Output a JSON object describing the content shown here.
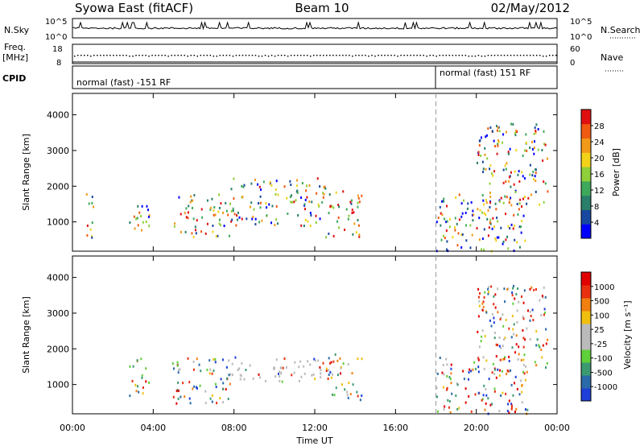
{
  "header": {
    "station": "Syowa East (fitACF)",
    "beam": "Beam 10",
    "date": "02/May/2012"
  },
  "strips": {
    "nsky_label": "N.Sky",
    "nsky_ticks": [
      "10^5",
      "10^0"
    ],
    "nsearch_label": "N.Search",
    "nsearch_ticks": [
      "10^5",
      "10^0"
    ],
    "freq_label": "Freq.",
    "freq_unit": "[MHz]",
    "freq_ticks": [
      "18",
      "8"
    ],
    "nave_label": "Nave",
    "nave_ticks": [
      "60",
      "0"
    ],
    "cpid_label": "CPID",
    "cpid_segments": [
      "normal (fast) -151 RF",
      "normal (fast) 151 RF"
    ]
  },
  "chart_data": [
    {
      "type": "heatmap",
      "title": "",
      "ylabel": "Slant Range [km]",
      "xlabel": "",
      "ylim": [
        180,
        4600
      ],
      "xlim_hours": [
        0,
        24
      ],
      "y_ticks": [
        "4000",
        "3000",
        "2000",
        "1000"
      ],
      "colorbar_label": "Power [dB]",
      "colorbar_ticks": [
        "28",
        "24",
        "20",
        "16",
        "12",
        "8",
        "4"
      ],
      "colorbar_colors": [
        "#0000ff",
        "#1848a0",
        "#2a7f6a",
        "#3fa85a",
        "#8ecf3a",
        "#f2d31a",
        "#f29a1a",
        "#f05a10",
        "#e01010"
      ],
      "regions": [
        {
          "t": [
            0.6,
            1.0
          ],
          "r": [
            300,
            2000
          ]
        },
        {
          "t": [
            2.8,
            3.8
          ],
          "r": [
            700,
            1800
          ]
        },
        {
          "t": [
            5.0,
            7.8
          ],
          "r": [
            600,
            1800
          ]
        },
        {
          "t": [
            7.8,
            12.5
          ],
          "r": [
            900,
            2300
          ]
        },
        {
          "t": [
            12.5,
            14.3
          ],
          "r": [
            600,
            1900
          ]
        },
        {
          "t": [
            18.0,
            22.5
          ],
          "r": [
            200,
            1800
          ]
        },
        {
          "t": [
            20.0,
            23.5
          ],
          "r": [
            1500,
            3800
          ]
        }
      ],
      "scale_marker_hours": 18.0
    },
    {
      "type": "heatmap",
      "title": "",
      "ylabel": "Slant Range [km]",
      "xlabel": "Time UT",
      "ylim": [
        180,
        4600
      ],
      "xlim_hours": [
        0,
        24
      ],
      "x_ticks": [
        "00:00",
        "04:00",
        "08:00",
        "12:00",
        "16:00",
        "20:00",
        "00:00"
      ],
      "y_ticks": [
        "4000",
        "3000",
        "2000",
        "1000"
      ],
      "colorbar_label": "Velocity [m s⁻¹]",
      "colorbar_ticks": [
        "1000",
        "500",
        "100",
        "25",
        "-25",
        "-100",
        "-500",
        "-1000"
      ],
      "colorbar_colors": [
        "#1e3fd8",
        "#2a6aa8",
        "#3c9a70",
        "#5fcf3a",
        "#bbbbbb",
        "#bbbbbb",
        "#f0c010",
        "#f08010",
        "#e83010",
        "#e00000"
      ],
      "ground_scatter_color": "#bbbbbb",
      "regions": [
        {
          "t": [
            2.8,
            3.8
          ],
          "r": [
            700,
            1800
          ]
        },
        {
          "t": [
            4.8,
            7.8
          ],
          "r": [
            500,
            1800
          ]
        },
        {
          "t": [
            7.8,
            12.5
          ],
          "r": [
            1100,
            1800
          ]
        },
        {
          "t": [
            12.5,
            14.3
          ],
          "r": [
            600,
            1900
          ]
        },
        {
          "t": [
            18.0,
            22.5
          ],
          "r": [
            200,
            1800
          ]
        },
        {
          "t": [
            20.0,
            23.5
          ],
          "r": [
            1500,
            3800
          ]
        }
      ],
      "scale_marker_hours": 18.0
    }
  ]
}
